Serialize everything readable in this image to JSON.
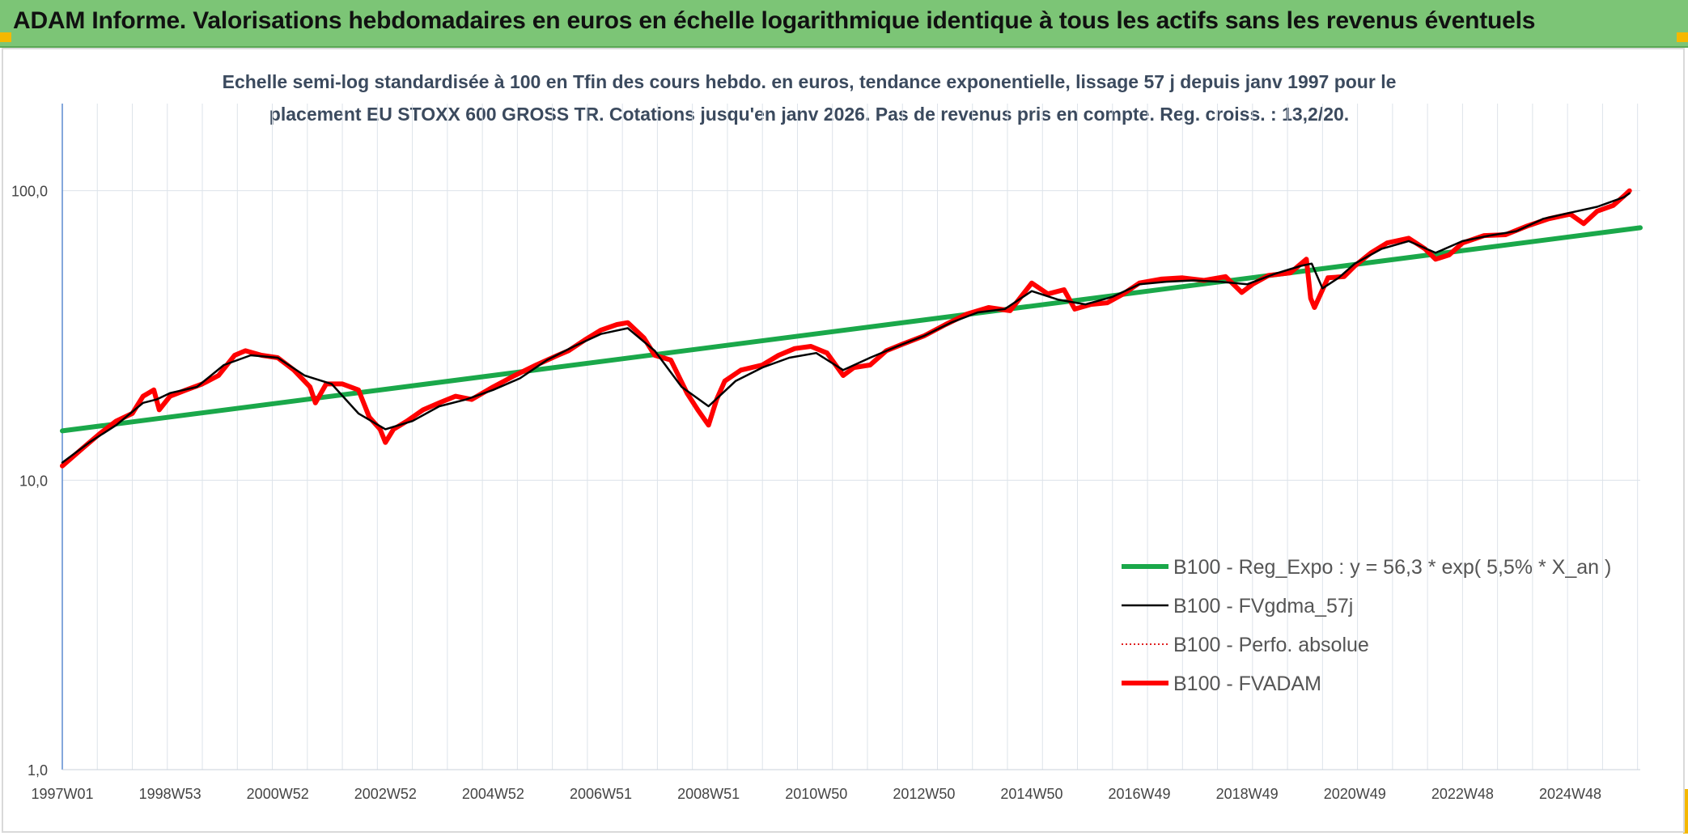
{
  "header": {
    "title": "ADAM Informe. Valorisations hebdomadaires en euros en échelle logarithmique identique à tous les actifs sans les revenus éventuels",
    "background": "#7cc576"
  },
  "chart_data": {
    "type": "line",
    "title_line1": "Echelle semi-log standardisée à 100 en Tfin des cours hebdo. en euros, tendance exponentielle, lissage 57 j depuis janv 1997 pour le",
    "title_line2": "placement EU STOXX 600 GROSS TR. Cotations jusqu'en janv 2026. Pas de revenus pris en compte. Reg. croiss. : 13,2/20.",
    "y_scale": "log",
    "ylim": [
      1,
      200
    ],
    "xlim": [
      1997.0,
      2026.3
    ],
    "y_ticks": [
      {
        "value": 1,
        "label": "1,0"
      },
      {
        "value": 10,
        "label": "10,0"
      },
      {
        "value": 100,
        "label": "100,0"
      }
    ],
    "x_ticks": [
      {
        "value": 1997.0,
        "label": "1997W01"
      },
      {
        "value": 1999.0,
        "label": "1998W53"
      },
      {
        "value": 2001.0,
        "label": "2000W52"
      },
      {
        "value": 2003.0,
        "label": "2002W52"
      },
      {
        "value": 2005.0,
        "label": "2004W52"
      },
      {
        "value": 2007.0,
        "label": "2006W51"
      },
      {
        "value": 2009.0,
        "label": "2008W51"
      },
      {
        "value": 2011.0,
        "label": "2010W50"
      },
      {
        "value": 2013.0,
        "label": "2012W50"
      },
      {
        "value": 2015.0,
        "label": "2014W50"
      },
      {
        "value": 2017.0,
        "label": "2016W49"
      },
      {
        "value": 2019.0,
        "label": "2018W49"
      },
      {
        "value": 2021.0,
        "label": "2020W49"
      },
      {
        "value": 2023.0,
        "label": "2022W48"
      },
      {
        "value": 2025.0,
        "label": "2024W48"
      }
    ],
    "grid": true,
    "legend_position": "bottom-right",
    "series": [
      {
        "name": "B100 - Reg_Expo : y = 56,3 * exp( 5,5% *  X_an )",
        "color": "#1aa84a",
        "style": "thick",
        "x": [
          1997.0,
          2026.3
        ],
        "y": [
          14.8,
          74.5
        ]
      },
      {
        "name": "B100 - FVgdma_57j",
        "color": "#000000",
        "style": "thin",
        "x": [
          1997.0,
          1997.5,
          1998.0,
          1998.5,
          1998.75,
          1999.0,
          1999.5,
          2000.0,
          2000.5,
          2001.0,
          2001.5,
          2002.0,
          2002.5,
          2003.0,
          2003.5,
          2004.0,
          2004.5,
          2005.0,
          2005.5,
          2006.0,
          2006.5,
          2007.0,
          2007.5,
          2008.0,
          2008.5,
          2009.0,
          2009.5,
          2010.0,
          2010.5,
          2011.0,
          2011.5,
          2012.0,
          2012.5,
          2013.0,
          2013.5,
          2014.0,
          2014.5,
          2015.0,
          2015.5,
          2016.0,
          2016.5,
          2017.0,
          2017.5,
          2018.0,
          2018.5,
          2019.0,
          2019.5,
          2020.0,
          2020.2,
          2020.4,
          2020.7,
          2021.0,
          2021.5,
          2022.0,
          2022.5,
          2023.0,
          2023.5,
          2024.0,
          2024.5,
          2025.0,
          2025.5,
          2026.0,
          2026.1
        ],
        "y": [
          11.5,
          13.5,
          15.5,
          18.5,
          19.0,
          20.0,
          21.0,
          25.0,
          27.0,
          26.5,
          23.0,
          21.5,
          17.0,
          15.0,
          16.0,
          18.0,
          19.0,
          20.5,
          22.5,
          26.0,
          29.0,
          32.0,
          33.5,
          28.0,
          21.0,
          18.0,
          22.0,
          24.5,
          26.5,
          27.5,
          24.0,
          26.5,
          29.0,
          31.5,
          35.0,
          38.0,
          39.0,
          45.0,
          42.0,
          40.5,
          43.0,
          47.5,
          48.5,
          49.0,
          48.5,
          47.5,
          51.5,
          55.0,
          56.0,
          46.0,
          50.0,
          56.0,
          63.0,
          67.0,
          61.0,
          67.0,
          70.0,
          72.5,
          80.0,
          84.0,
          88.0,
          95.0,
          98.0
        ]
      },
      {
        "name": "B100 - Perfo. absolue",
        "color": "#e02020",
        "style": "dotted",
        "x": [],
        "y": []
      },
      {
        "name": "B100 - FVADAM",
        "color": "#ff0000",
        "style": "thick",
        "x": [
          1997.0,
          1997.4,
          1997.7,
          1998.0,
          1998.3,
          1998.5,
          1998.7,
          1998.8,
          1999.0,
          1999.3,
          1999.6,
          1999.9,
          2000.2,
          2000.4,
          2000.7,
          2001.0,
          2001.3,
          2001.6,
          2001.7,
          2001.9,
          2002.2,
          2002.5,
          2002.7,
          2002.9,
          2003.0,
          2003.15,
          2003.4,
          2003.7,
          2004.0,
          2004.3,
          2004.6,
          2005.0,
          2005.4,
          2005.8,
          2006.2,
          2006.4,
          2006.7,
          2007.0,
          2007.3,
          2007.5,
          2007.8,
          2008.0,
          2008.3,
          2008.6,
          2008.8,
          2009.0,
          2009.15,
          2009.3,
          2009.6,
          2010.0,
          2010.3,
          2010.6,
          2010.9,
          2011.2,
          2011.5,
          2011.7,
          2012.0,
          2012.3,
          2012.6,
          2013.0,
          2013.4,
          2013.8,
          2014.2,
          2014.6,
          2015.0,
          2015.3,
          2015.6,
          2015.8,
          2016.1,
          2016.4,
          2016.7,
          2017.0,
          2017.4,
          2017.8,
          2018.2,
          2018.6,
          2018.9,
          2019.1,
          2019.4,
          2019.8,
          2020.1,
          2020.18,
          2020.25,
          2020.5,
          2020.8,
          2021.0,
          2021.3,
          2021.6,
          2022.0,
          2022.3,
          2022.5,
          2022.75,
          2023.0,
          2023.4,
          2023.8,
          2024.2,
          2024.6,
          2025.0,
          2025.25,
          2025.5,
          2025.8,
          2026.0,
          2026.1
        ],
        "y": [
          11.2,
          13.0,
          14.5,
          16.0,
          17.0,
          19.5,
          20.5,
          17.5,
          19.5,
          20.5,
          21.5,
          23.0,
          27.0,
          28.0,
          27.0,
          26.5,
          24.0,
          21.0,
          18.5,
          21.5,
          21.5,
          20.5,
          16.5,
          15.0,
          13.5,
          15.0,
          16.0,
          17.5,
          18.5,
          19.5,
          19.0,
          21.0,
          23.0,
          25.0,
          27.0,
          28.0,
          30.5,
          33.0,
          34.5,
          35.0,
          31.0,
          27.0,
          26.0,
          20.0,
          17.5,
          15.5,
          19.0,
          22.0,
          24.0,
          25.0,
          27.0,
          28.5,
          29.0,
          27.5,
          23.0,
          24.5,
          25.0,
          28.0,
          29.5,
          31.5,
          34.5,
          37.5,
          39.5,
          38.5,
          48.0,
          44.0,
          45.5,
          39.0,
          40.5,
          41.0,
          44.0,
          48.0,
          49.5,
          50.0,
          49.0,
          50.5,
          44.5,
          47.5,
          51.0,
          52.0,
          58.0,
          42.5,
          39.5,
          50.0,
          50.5,
          55.0,
          61.0,
          66.0,
          68.5,
          63.0,
          58.0,
          60.0,
          66.0,
          70.0,
          70.5,
          75.5,
          80.0,
          83.0,
          77.0,
          85.0,
          89.0,
          96.0,
          100.0
        ]
      }
    ]
  }
}
